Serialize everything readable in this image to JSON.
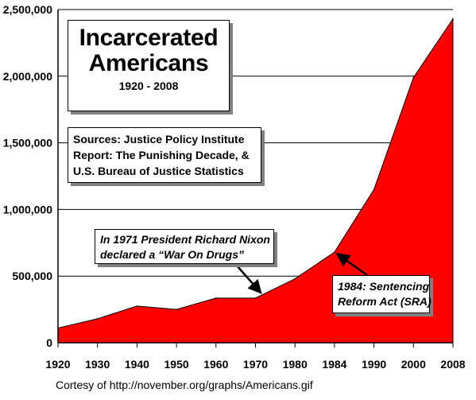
{
  "chart_data": {
    "type": "area",
    "title": "Incarcerated Americans",
    "subtitle": "1920 - 2008",
    "x": [
      "1920",
      "1930",
      "1940",
      "1950",
      "1960",
      "1970",
      "1980",
      "1984",
      "1990",
      "2000",
      "2008"
    ],
    "values": [
      110000,
      180000,
      275000,
      250000,
      335000,
      335000,
      480000,
      680000,
      1150000,
      1990000,
      2430000
    ],
    "y_ticks": [
      "0",
      "500,000",
      "1,000,000",
      "1,500,000",
      "2,000,000",
      "2,500,000"
    ],
    "ylim": [
      0,
      2500000
    ],
    "grid": "horizontal",
    "color": "#ff0000",
    "sources_lines": [
      "Sources: Justice Policy Institute",
      "Report: The Punishing Decade, &",
      "U.S. Bureau of Justice Statistics"
    ],
    "annotations": [
      {
        "lines": [
          "In 1971 President Richard Nixon",
          "declared a “War On Drugs”"
        ],
        "year": 1971
      },
      {
        "lines": [
          "1984: Sentencing",
          "Reform Act (SRA)"
        ],
        "year": 1984
      }
    ]
  },
  "credit": "Cortesy of http://november.org/graphs/Americans.gif"
}
